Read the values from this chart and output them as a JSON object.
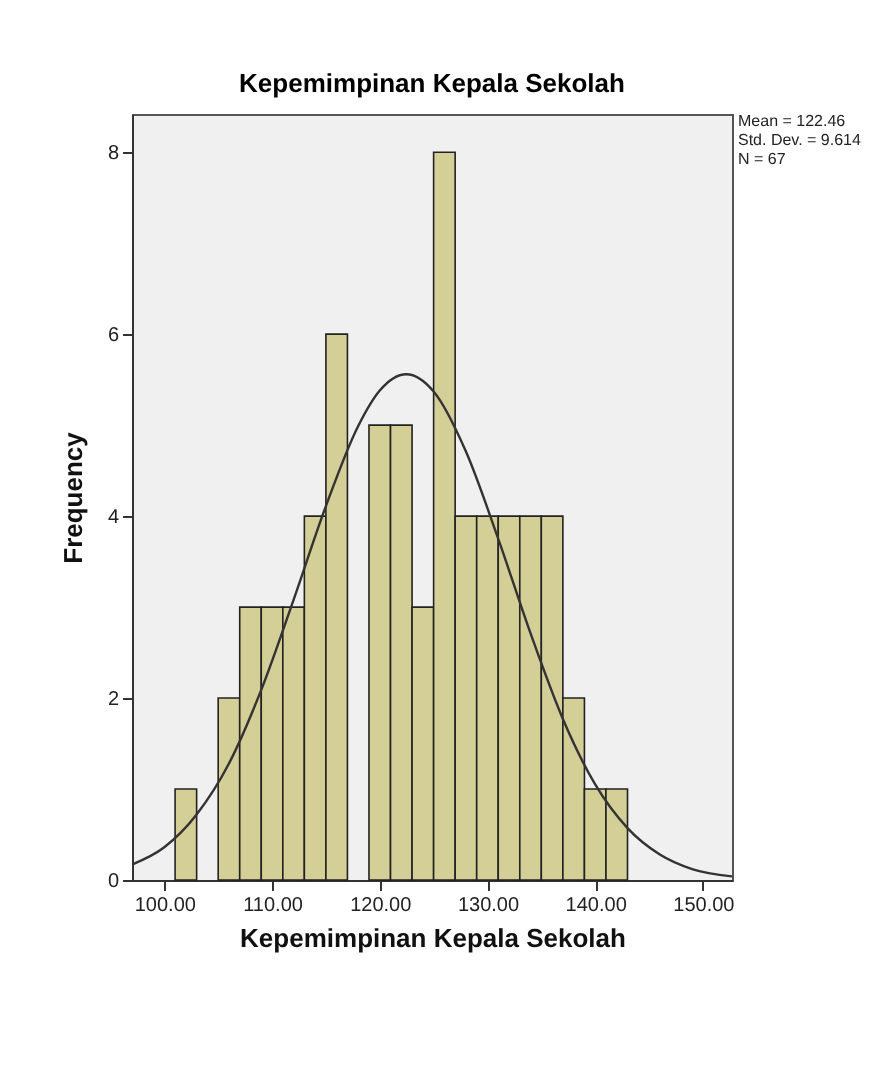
{
  "chart_data": {
    "type": "histogram",
    "title": "Kepemimpinan Kepala Sekolah",
    "xlabel": "Kepemimpinan Kepala Sekolah",
    "ylabel": "Frequency",
    "bins": [
      101,
      103,
      105,
      107,
      109,
      111,
      113,
      115,
      117,
      119,
      121,
      123,
      125,
      127,
      129,
      131,
      133,
      135,
      137,
      139,
      141,
      143
    ],
    "series": [
      {
        "color": "#d4cf96",
        "values": [
          1,
          0,
          2,
          3,
          3,
          3,
          4,
          6,
          0,
          5,
          5,
          3,
          8,
          4,
          4,
          4,
          4,
          4,
          2,
          1,
          1
        ]
      },
      {
        "type": "line",
        "color": "#333333",
        "x": [
          97,
          100,
          103,
          106,
          109,
          112,
          115,
          118,
          120,
          122.46,
          125,
          128,
          131,
          134,
          137,
          140,
          143,
          146,
          149,
          152.7
        ],
        "values": [
          0.17,
          0.36,
          0.72,
          1.28,
          2.09,
          3.08,
          4.11,
          4.99,
          5.38,
          5.56,
          5.37,
          4.71,
          3.75,
          2.71,
          1.77,
          1.05,
          0.57,
          0.28,
          0.12,
          0.04
        ]
      }
    ],
    "xlim": [
      97,
      152.7
    ],
    "ylim": [
      0,
      8.42
    ],
    "xticks": [
      {
        "value": 100,
        "label": "100.00"
      },
      {
        "value": 110,
        "label": "110.00"
      },
      {
        "value": 120,
        "label": "120.00"
      },
      {
        "value": 130,
        "label": "130.00"
      },
      {
        "value": 140,
        "label": "140.00"
      },
      {
        "value": 150,
        "label": "150.00"
      }
    ],
    "yticks": [
      0,
      2,
      4,
      6,
      8
    ],
    "annotations": [
      "Mean = 122.46",
      "Std. Dev. = 9.614",
      "N = 67"
    ]
  }
}
